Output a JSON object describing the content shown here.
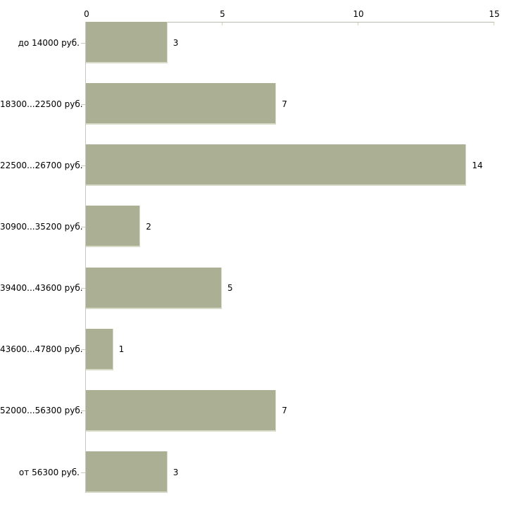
{
  "chart_data": {
    "type": "bar",
    "orientation": "horizontal",
    "title": "",
    "xlabel": "",
    "ylabel": "",
    "categories": [
      "до 14000 руб.",
      "18300...22500 руб.",
      "22500...26700 руб.",
      "30900...35200 руб.",
      "39400...43600 руб.",
      "43600...47800 руб.",
      "52000...56300 руб.",
      "от 56300 руб."
    ],
    "values": [
      3,
      7,
      14,
      2,
      5,
      1,
      7,
      3
    ],
    "value_labels": [
      "3",
      "7",
      "14",
      "2",
      "5",
      "1",
      "7",
      "3"
    ],
    "xlim": [
      0,
      15
    ],
    "x_ticks": [
      0,
      5,
      10,
      15
    ],
    "x_tick_labels": [
      "0",
      "5",
      "10",
      "15"
    ],
    "x_axis_position": "top",
    "grid": false,
    "legend": null,
    "colors": {
      "bar_fill": "#abb095",
      "bar_edge": "#d7dac7",
      "x_axis_line": "#b9bab2",
      "y_axis_line": "#c6c7c1",
      "tick_mark": "#d2d5b2",
      "category_tick": "#c9cbb9",
      "text": "#000000",
      "background": "#ffffff"
    }
  }
}
